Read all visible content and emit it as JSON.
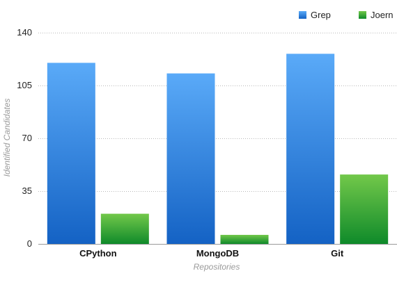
{
  "chart_data": {
    "type": "bar",
    "categories": [
      "CPython",
      "MongoDB",
      "Git"
    ],
    "series": [
      {
        "name": "Grep",
        "values": [
          120,
          113,
          126
        ],
        "color_top": "#5aaaf8",
        "color_bottom": "#1462c4"
      },
      {
        "name": "Joern",
        "values": [
          20,
          6,
          46
        ],
        "color_top": "#72c84a",
        "color_bottom": "#0f8a2a"
      }
    ],
    "xlabel": "Repositories",
    "ylabel": "Identified Candidates",
    "ylim": [
      0,
      140
    ],
    "yticks": [
      "0",
      "35",
      "70",
      "105",
      "140"
    ],
    "ytick_values": [
      0,
      35,
      70,
      105,
      140
    ],
    "grid": true,
    "legend_position": "top-right"
  }
}
